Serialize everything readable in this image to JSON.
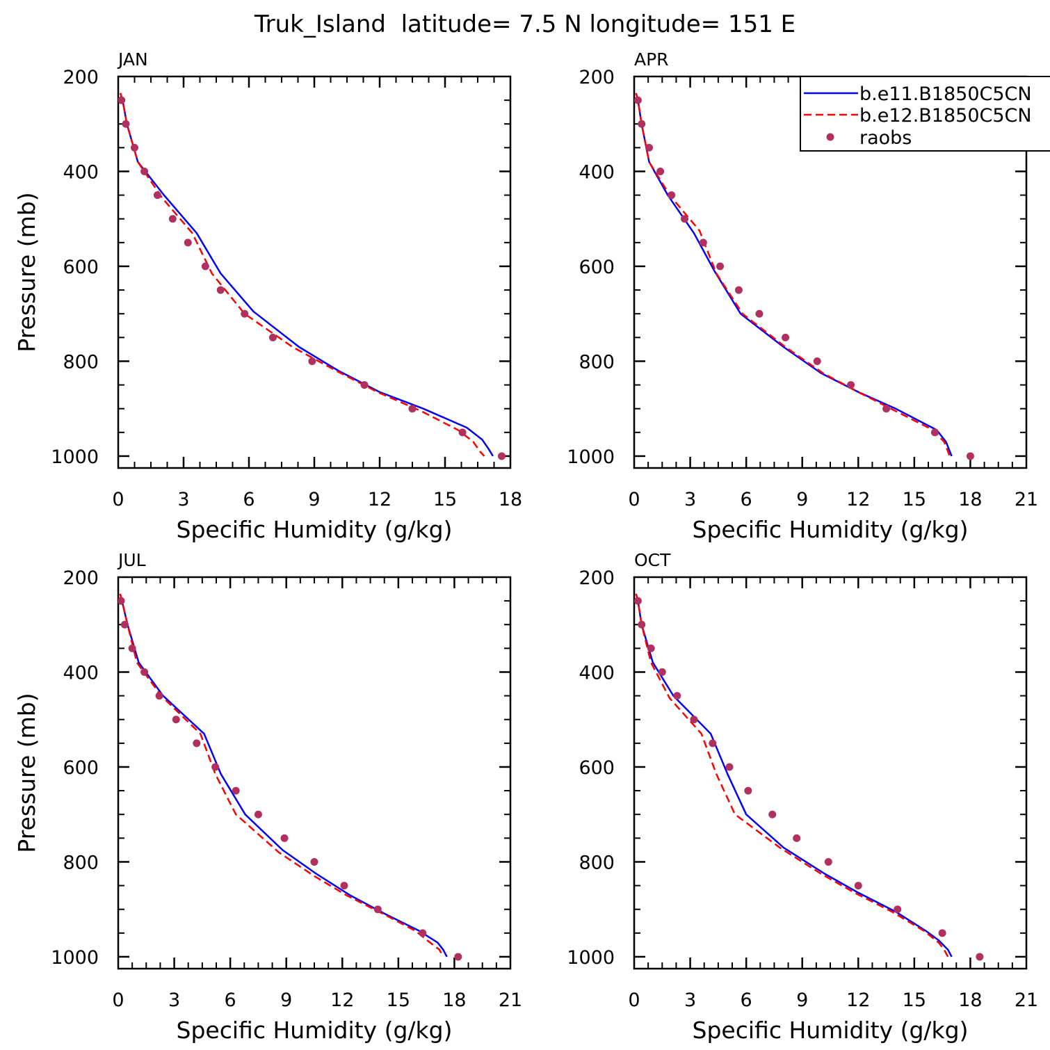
{
  "figure": {
    "title": "Truk_Island  latitude= 7.5 N longitude= 151 E"
  },
  "colors": {
    "series1": "#0000ff",
    "series2": "#ff0000",
    "raobs": "#b03060",
    "axis": "#000000"
  },
  "chart_data": [
    {
      "type": "line",
      "panel_label": "JAN",
      "xlabel": "Specific Humidity (g/kg)",
      "ylabel": "Pressure (mb)",
      "xlim": [
        0,
        18
      ],
      "xticks": [
        0,
        3,
        6,
        9,
        12,
        15,
        18
      ],
      "ylim": [
        200,
        1025
      ],
      "yticks": [
        200,
        400,
        600,
        800,
        1000
      ],
      "y_inverted": true,
      "series": [
        {
          "name": "b.e11.B1850C5CN",
          "style": "solid",
          "x": [
            0.1,
            0.2,
            0.4,
            0.9,
            2.1,
            3.6,
            4.7,
            6.2,
            8.3,
            10.1,
            12.0,
            14.0,
            16.0,
            16.7,
            17.0,
            17.2
          ],
          "y": [
            235,
            250,
            300,
            380,
            450,
            530,
            615,
            695,
            770,
            820,
            865,
            900,
            940,
            965,
            985,
            1000
          ]
        },
        {
          "name": "b.e12.B1850C5CN",
          "style": "dashed",
          "x": [
            0.1,
            0.2,
            0.4,
            0.9,
            2.0,
            3.4,
            4.3,
            5.8,
            8.0,
            10.0,
            11.9,
            13.9,
            15.6,
            16.3,
            16.6,
            16.8
          ],
          "y": [
            235,
            250,
            300,
            380,
            455,
            530,
            615,
            700,
            770,
            820,
            865,
            905,
            945,
            970,
            990,
            1000
          ]
        },
        {
          "name": "raobs",
          "style": "points",
          "x": [
            0.15,
            0.35,
            0.75,
            1.2,
            1.8,
            2.5,
            3.2,
            4.0,
            4.7,
            5.8,
            7.1,
            8.9,
            11.3,
            13.5,
            15.8,
            17.6
          ],
          "y": [
            250,
            300,
            350,
            400,
            450,
            500,
            550,
            600,
            650,
            700,
            750,
            800,
            850,
            900,
            950,
            1000
          ]
        }
      ]
    },
    {
      "type": "line",
      "panel_label": "APR",
      "xlabel": "Specific Humidity (g/kg)",
      "ylabel": "",
      "xlim": [
        0,
        21
      ],
      "xticks": [
        0,
        3,
        6,
        9,
        12,
        15,
        18,
        21
      ],
      "ylim": [
        200,
        1025
      ],
      "yticks": [
        200,
        400,
        600,
        800,
        1000
      ],
      "y_inverted": true,
      "series": [
        {
          "name": "b.e11.B1850C5CN",
          "style": "solid",
          "x": [
            0.1,
            0.2,
            0.4,
            0.8,
            1.8,
            3.2,
            4.3,
            5.7,
            8.0,
            10.0,
            12.0,
            14.0,
            16.2,
            16.7,
            17.0
          ],
          "y": [
            235,
            250,
            300,
            380,
            450,
            530,
            610,
            700,
            770,
            825,
            865,
            900,
            945,
            970,
            1000
          ]
        },
        {
          "name": "b.e12.B1850C5CN",
          "style": "dashed",
          "x": [
            0.1,
            0.2,
            0.4,
            0.8,
            1.9,
            3.5,
            4.4,
            5.8,
            8.1,
            10.1,
            12.0,
            14.0,
            16.0,
            16.6,
            16.9
          ],
          "y": [
            235,
            250,
            300,
            380,
            450,
            525,
            615,
            700,
            770,
            825,
            865,
            905,
            945,
            970,
            1000
          ]
        },
        {
          "name": "raobs",
          "style": "points",
          "x": [
            0.2,
            0.4,
            0.8,
            1.4,
            2.0,
            2.7,
            3.7,
            4.6,
            5.6,
            6.7,
            8.1,
            9.8,
            11.6,
            13.5,
            16.1,
            18.0
          ],
          "y": [
            250,
            300,
            350,
            400,
            450,
            500,
            550,
            600,
            650,
            700,
            750,
            800,
            850,
            900,
            950,
            1000
          ]
        }
      ]
    },
    {
      "type": "line",
      "panel_label": "JUL",
      "xlabel": "Specific Humidity (g/kg)",
      "ylabel": "Pressure (mb)",
      "xlim": [
        0,
        21
      ],
      "xticks": [
        0,
        3,
        6,
        9,
        12,
        15,
        18,
        21
      ],
      "ylim": [
        200,
        1025
      ],
      "yticks": [
        200,
        400,
        600,
        800,
        1000
      ],
      "y_inverted": true,
      "series": [
        {
          "name": "b.e11.B1850C5CN",
          "style": "solid",
          "x": [
            0.1,
            0.2,
            0.5,
            1.1,
            2.4,
            4.6,
            5.5,
            6.8,
            8.8,
            10.6,
            12.4,
            14.3,
            16.1,
            17.1,
            17.4,
            17.6
          ],
          "y": [
            235,
            250,
            300,
            380,
            450,
            530,
            615,
            700,
            775,
            825,
            870,
            910,
            945,
            970,
            985,
            1000
          ]
        },
        {
          "name": "b.e12.B1850C5CN",
          "style": "dashed",
          "x": [
            0.1,
            0.2,
            0.5,
            1.0,
            2.3,
            4.4,
            5.2,
            6.3,
            8.6,
            10.5,
            12.2,
            14.2,
            15.9,
            16.7,
            17.2,
            17.4
          ],
          "y": [
            235,
            250,
            300,
            380,
            450,
            530,
            615,
            700,
            780,
            830,
            870,
            910,
            945,
            970,
            985,
            1000
          ]
        },
        {
          "name": "raobs",
          "style": "points",
          "x": [
            0.15,
            0.35,
            0.75,
            1.4,
            2.2,
            3.1,
            4.2,
            5.2,
            6.3,
            7.5,
            8.9,
            10.5,
            12.1,
            13.9,
            16.3,
            18.2
          ],
          "y": [
            250,
            300,
            350,
            400,
            450,
            500,
            550,
            600,
            650,
            700,
            750,
            800,
            850,
            900,
            950,
            1000
          ]
        }
      ]
    },
    {
      "type": "line",
      "panel_label": "OCT",
      "xlabel": "Specific Humidity (g/kg)",
      "ylabel": "",
      "xlim": [
        0,
        21
      ],
      "xticks": [
        0,
        3,
        6,
        9,
        12,
        15,
        18,
        21
      ],
      "ylim": [
        200,
        1025
      ],
      "yticks": [
        200,
        400,
        600,
        800,
        1000
      ],
      "y_inverted": true,
      "series": [
        {
          "name": "b.e11.B1850C5CN",
          "style": "solid",
          "x": [
            0.1,
            0.2,
            0.4,
            1.0,
            2.1,
            4.1,
            5.0,
            6.0,
            8.0,
            10.2,
            12.0,
            14.0,
            15.6,
            16.3,
            16.8,
            17.0
          ],
          "y": [
            235,
            250,
            300,
            380,
            450,
            530,
            615,
            700,
            770,
            825,
            865,
            905,
            945,
            965,
            985,
            1000
          ]
        },
        {
          "name": "b.e12.B1850C5CN",
          "style": "dashed",
          "x": [
            0.1,
            0.2,
            0.4,
            0.9,
            1.9,
            3.6,
            4.4,
            5.4,
            7.8,
            10.0,
            11.8,
            13.8,
            15.5,
            16.3,
            16.6,
            16.8
          ],
          "y": [
            235,
            250,
            300,
            380,
            455,
            530,
            615,
            700,
            770,
            825,
            865,
            905,
            945,
            970,
            985,
            1000
          ]
        },
        {
          "name": "raobs",
          "style": "points",
          "x": [
            0.2,
            0.4,
            0.9,
            1.5,
            2.3,
            3.2,
            4.2,
            5.1,
            6.1,
            7.4,
            8.7,
            10.4,
            12.0,
            14.1,
            16.5,
            18.5
          ],
          "y": [
            250,
            300,
            350,
            400,
            450,
            500,
            550,
            600,
            650,
            700,
            750,
            800,
            850,
            900,
            950,
            1000
          ]
        }
      ]
    }
  ]
}
